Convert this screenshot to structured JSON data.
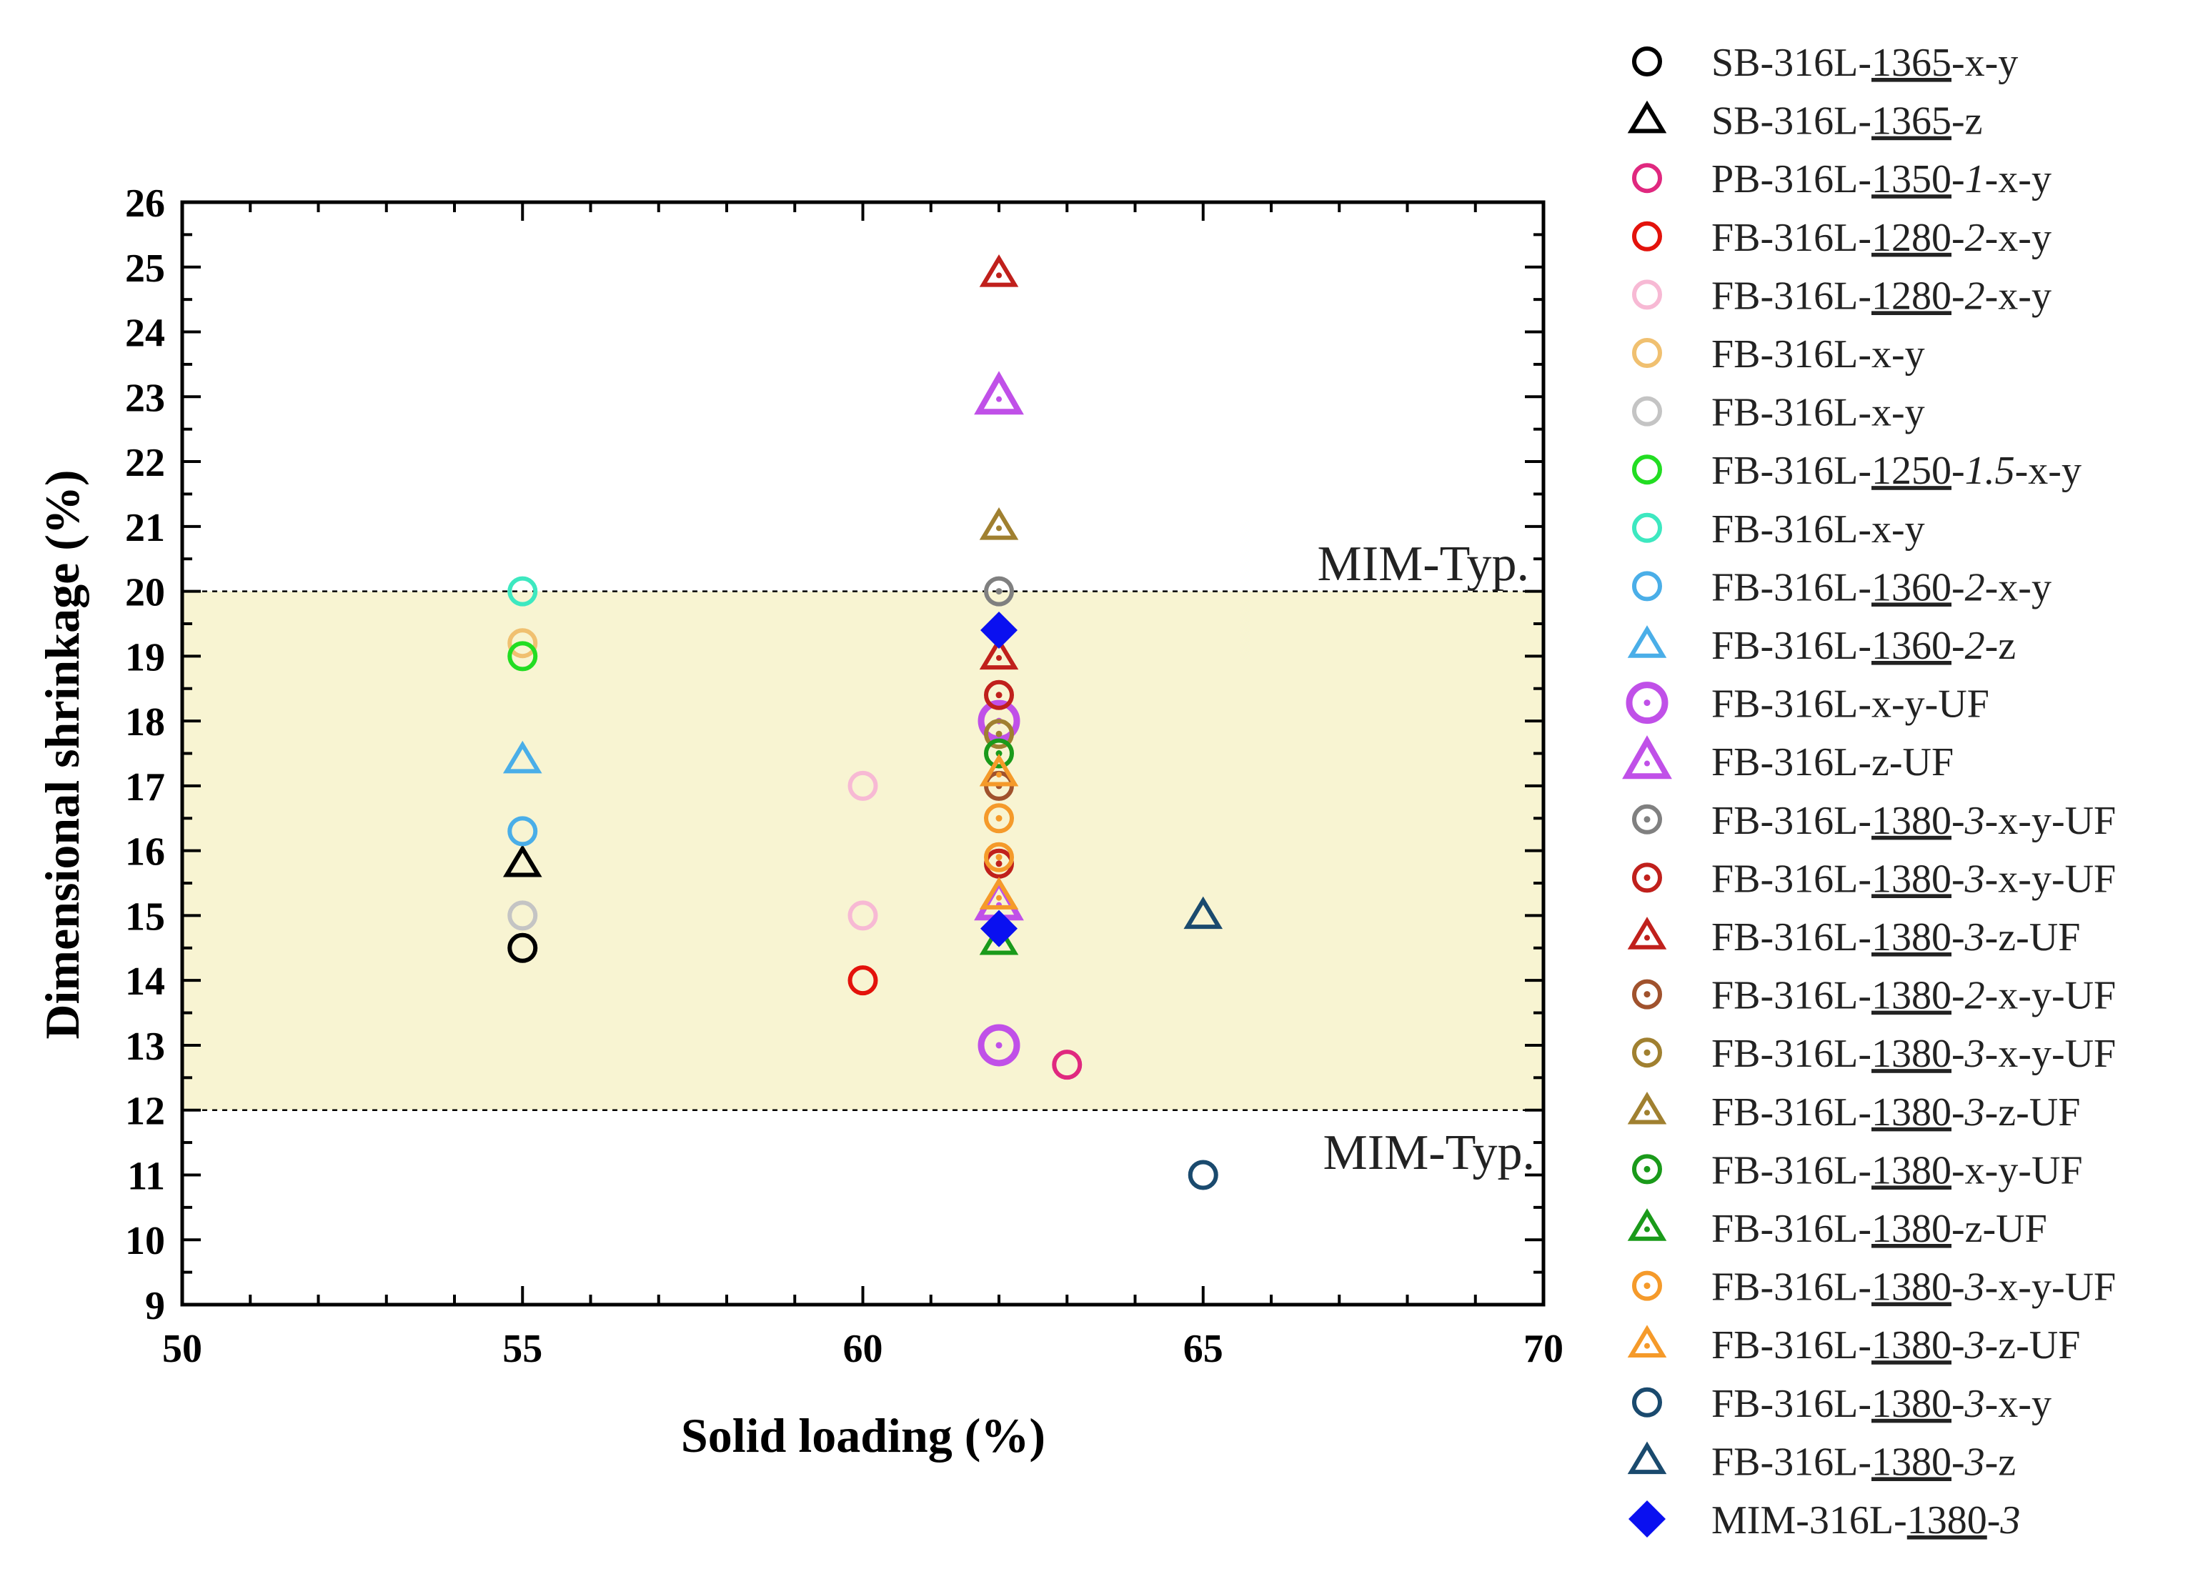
{
  "chart_data": {
    "type": "scatter",
    "title": "",
    "xlabel": "Solid loading (%)",
    "ylabel": "Dimensional shrinkage (%)",
    "xlim": [
      50,
      70
    ],
    "ylim": [
      9,
      26
    ],
    "x_ticks": [
      "50",
      "55",
      "60",
      "65",
      "70"
    ],
    "y_ticks": [
      "9",
      "10",
      "11",
      "12",
      "13",
      "14",
      "15",
      "16",
      "17",
      "18",
      "19",
      "20",
      "21",
      "22",
      "23",
      "24",
      "25",
      "26"
    ],
    "band": {
      "low": 12,
      "high": 20,
      "color": "#f8f4d2"
    },
    "band_labels": {
      "upper": "MIM-Typ.",
      "lower": "MIM-Typ."
    },
    "legend_position": "right",
    "series": [
      {
        "pre": "SB-316L-",
        "ul": "1365",
        "it": "",
        "post": "-x-y",
        "marker": "circle",
        "color": "#000000",
        "points": [
          [
            55,
            14.5
          ]
        ]
      },
      {
        "pre": "SB-316L-",
        "ul": "1365",
        "it": "",
        "post": "-z",
        "marker": "triangle",
        "color": "#000000",
        "points": [
          [
            55,
            15.8
          ]
        ]
      },
      {
        "pre": "PB-316L-",
        "ul": "1350",
        "it": "-1",
        "post": "-x-y",
        "marker": "circle",
        "color": "#e0287f",
        "points": [
          [
            63,
            12.7
          ]
        ]
      },
      {
        "pre": "FB-316L-",
        "ul": "1280",
        "it": "-2",
        "post": "-x-y",
        "marker": "circle",
        "color": "#e3120b",
        "points": [
          [
            60,
            14
          ]
        ]
      },
      {
        "pre": "FB-316L-",
        "ul": "1280",
        "it": "-2",
        "post": "-x-y",
        "marker": "circle",
        "color": "#f7b9d4",
        "points": [
          [
            60,
            17
          ],
          [
            60,
            15
          ]
        ]
      },
      {
        "pre": "FB-316L-x-y",
        "ul": "",
        "it": "",
        "post": "",
        "marker": "circle",
        "color": "#f0c070",
        "points": [
          [
            55,
            19.2
          ]
        ]
      },
      {
        "pre": "FB-316L-x-y",
        "ul": "",
        "it": "",
        "post": "",
        "marker": "circle",
        "color": "#c4c4c4",
        "points": [
          [
            55,
            15
          ]
        ]
      },
      {
        "pre": "FB-316L-",
        "ul": "1250",
        "it": "-1.5",
        "post": "-x-y",
        "marker": "circle",
        "color": "#22dd22",
        "points": [
          [
            55,
            19
          ]
        ]
      },
      {
        "pre": "FB-316L-x-y",
        "ul": "",
        "it": "",
        "post": "",
        "marker": "circle",
        "color": "#3de8c0",
        "points": [
          [
            55,
            20
          ]
        ]
      },
      {
        "pre": "FB-316L-",
        "ul": "1360",
        "it": "-2",
        "post": "-x-y",
        "marker": "circle",
        "color": "#4aaee8",
        "points": [
          [
            55,
            16.3
          ]
        ]
      },
      {
        "pre": "FB-316L-",
        "ul": "1360",
        "it": "-2",
        "post": "-z",
        "marker": "triangle",
        "color": "#4aaee8",
        "points": [
          [
            55,
            17.4
          ]
        ]
      },
      {
        "pre": "FB-316L-x-y-UF",
        "ul": "",
        "it": "",
        "post": "",
        "marker": "circle-dot-large",
        "color": "#c050e8",
        "points": [
          [
            62,
            18
          ],
          [
            62,
            13
          ]
        ]
      },
      {
        "pre": "FB-316L-z-UF",
        "ul": "",
        "it": "",
        "post": "",
        "marker": "triangle-dot-large",
        "color": "#c050e8",
        "points": [
          [
            62,
            23
          ],
          [
            62,
            15.2
          ]
        ]
      },
      {
        "pre": "FB-316L-",
        "ul": "1380",
        "it": "-3",
        "post": "-x-y-UF",
        "marker": "circle-dot",
        "color": "#808080",
        "points": [
          [
            62,
            20
          ]
        ]
      },
      {
        "pre": "FB-316L-",
        "ul": "1380",
        "it": "-3",
        "post": "-x-y-UF",
        "marker": "circle-dot",
        "color": "#c0201c",
        "points": [
          [
            62,
            18.4
          ],
          [
            62,
            15.8
          ]
        ]
      },
      {
        "pre": "FB-316L-",
        "ul": "1380",
        "it": "-3",
        "post": "-z-UF",
        "marker": "triangle-dot",
        "color": "#c0201c",
        "points": [
          [
            62,
            24.9
          ],
          [
            62,
            19
          ]
        ]
      },
      {
        "pre": "FB-316L-",
        "ul": "1380",
        "it": "-2",
        "post": "-x-y-UF",
        "marker": "circle-dot",
        "color": "#a0522d",
        "points": [
          [
            62,
            17
          ]
        ]
      },
      {
        "pre": "FB-316L-",
        "ul": "1380",
        "it": "-3",
        "post": "-x-y-UF",
        "marker": "circle-dot",
        "color": "#a08030",
        "points": [
          [
            62,
            17.8
          ]
        ]
      },
      {
        "pre": "FB-316L-",
        "ul": "1380",
        "it": "-3",
        "post": "-z-UF",
        "marker": "triangle-dot",
        "color": "#a08030",
        "points": [
          [
            62,
            21
          ]
        ]
      },
      {
        "pre": "FB-316L-",
        "ul": "1380",
        "it": "",
        "post": "-x-y-UF",
        "marker": "circle-dot",
        "color": "#1a9a1a",
        "points": [
          [
            62,
            17.5
          ]
        ]
      },
      {
        "pre": "FB-316L-",
        "ul": "1380",
        "it": "",
        "post": "-z-UF",
        "marker": "triangle-dot",
        "color": "#1a9a1a",
        "points": [
          [
            62,
            14.6
          ]
        ]
      },
      {
        "pre": "FB-316L-",
        "ul": "1380",
        "it": "-3",
        "post": "-x-y-UF",
        "marker": "circle-dot",
        "color": "#f59a2a",
        "points": [
          [
            62,
            16.5
          ],
          [
            62,
            15.9
          ]
        ]
      },
      {
        "pre": "FB-316L-",
        "ul": "1380",
        "it": "-3",
        "post": "-z-UF",
        "marker": "triangle-dot",
        "color": "#f59a2a",
        "points": [
          [
            62,
            17.2
          ],
          [
            62,
            15.3
          ]
        ]
      },
      {
        "pre": "FB-316L-",
        "ul": "1380",
        "it": "-3",
        "post": "-x-y",
        "marker": "circle",
        "color": "#1a4a6e",
        "points": [
          [
            65,
            11
          ]
        ]
      },
      {
        "pre": "FB-316L-",
        "ul": "1380",
        "it": "-3",
        "post": "-z",
        "marker": "triangle",
        "color": "#1a4a6e",
        "points": [
          [
            65,
            15
          ]
        ]
      },
      {
        "pre": "MIM-316L-",
        "ul": "1380",
        "it": "-3",
        "post": "",
        "marker": "diamond",
        "color": "#0a10f0",
        "points": [
          [
            62,
            19.4
          ],
          [
            62,
            14.8
          ]
        ]
      }
    ]
  }
}
